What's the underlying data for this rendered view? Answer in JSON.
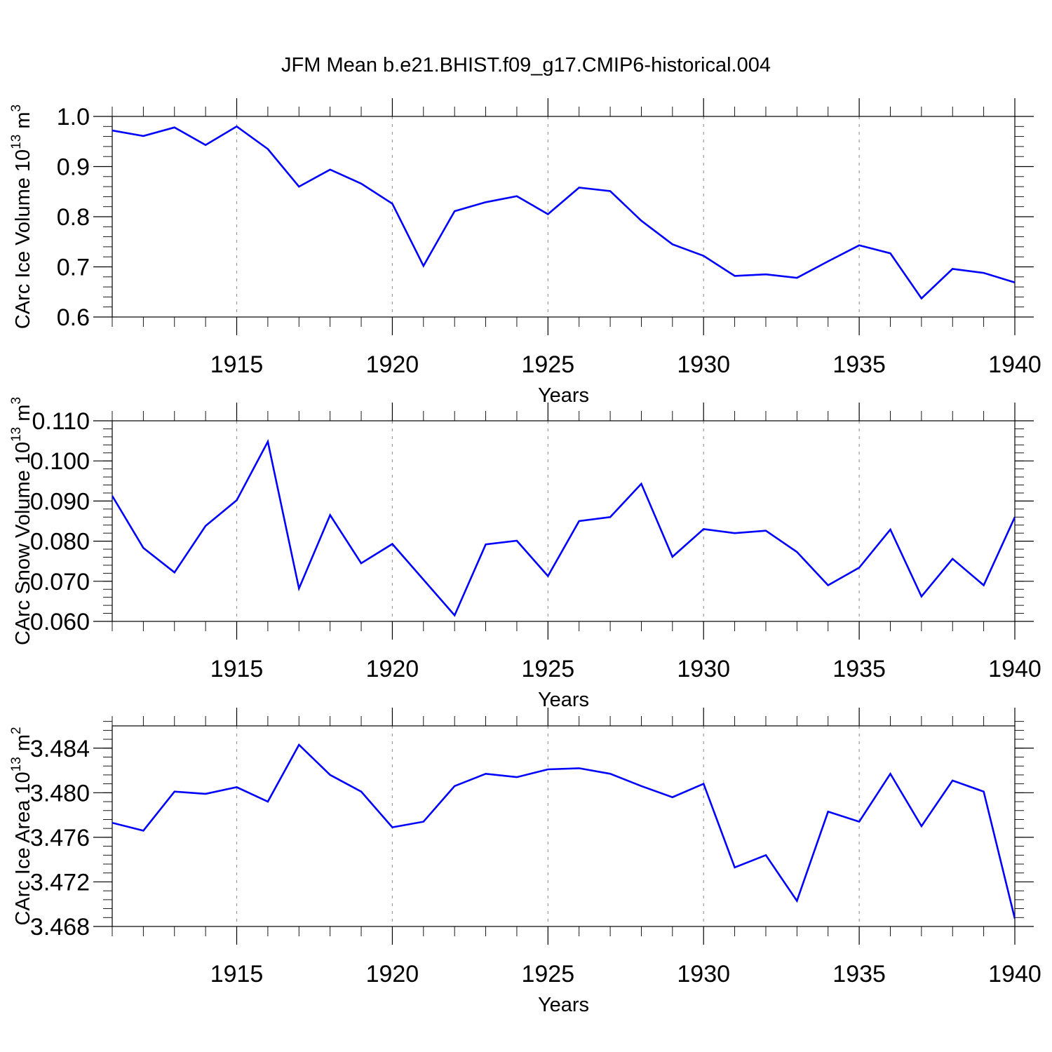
{
  "title": "JFM Mean b.e21.BHIST.f09_g17.CMIP6-historical.004",
  "colors": {
    "line": "#0000ff",
    "grid": "#999999",
    "frame": "#000000"
  },
  "chart_data": [
    {
      "type": "line",
      "ylabel": "CArc Ice Volume 10",
      "ylabel_exp": "13",
      "ylabel_unit": " m",
      "ylabel_unit_exp": "3",
      "xlabel": "Years",
      "xlim": [
        1911,
        1940
      ],
      "ylim": [
        0.6,
        1.0
      ],
      "yticks": [
        0.6,
        0.7,
        0.8,
        0.9,
        1.0
      ],
      "ytick_labels": [
        "0.6",
        "0.7",
        "0.8",
        "0.9",
        "1.0"
      ],
      "yminor_step": 0.02,
      "xticks": [
        1915,
        1920,
        1925,
        1930,
        1935,
        1940
      ],
      "xtick_labels": [
        "1915",
        "1920",
        "1925",
        "1930",
        "1935",
        "1940"
      ],
      "grid_x": [
        1915,
        1920,
        1925,
        1930,
        1935
      ],
      "x": [
        1911,
        1912,
        1913,
        1914,
        1915,
        1916,
        1917,
        1918,
        1919,
        1920,
        1921,
        1922,
        1923,
        1924,
        1925,
        1926,
        1927,
        1928,
        1929,
        1930,
        1931,
        1932,
        1933,
        1934,
        1935,
        1936,
        1937,
        1938,
        1939,
        1940
      ],
      "values": [
        0.972,
        0.961,
        0.978,
        0.943,
        0.98,
        0.935,
        0.86,
        0.894,
        0.866,
        0.826,
        0.702,
        0.811,
        0.829,
        0.841,
        0.805,
        0.858,
        0.851,
        0.792,
        0.745,
        0.722,
        0.682,
        0.685,
        0.678,
        0.711,
        0.743,
        0.727,
        0.637,
        0.696,
        0.688,
        0.669
      ]
    },
    {
      "type": "line",
      "ylabel": "CArc Snow Volume 10",
      "ylabel_exp": "13",
      "ylabel_unit": " m",
      "ylabel_unit_exp": "3",
      "xlabel": "Years",
      "xlim": [
        1911,
        1940
      ],
      "ylim": [
        0.06,
        0.11
      ],
      "yticks": [
        0.06,
        0.07,
        0.08,
        0.09,
        0.1,
        0.11
      ],
      "ytick_labels": [
        "0.060",
        "0.070",
        "0.080",
        "0.090",
        "0.100",
        "0.110"
      ],
      "yminor_step": 0.002,
      "xticks": [
        1915,
        1920,
        1925,
        1930,
        1935,
        1940
      ],
      "xtick_labels": [
        "1915",
        "1920",
        "1925",
        "1930",
        "1935",
        "1940"
      ],
      "grid_x": [
        1915,
        1920,
        1925,
        1930,
        1935
      ],
      "x": [
        1911,
        1912,
        1913,
        1914,
        1915,
        1916,
        1917,
        1918,
        1919,
        1920,
        1921,
        1922,
        1923,
        1924,
        1925,
        1926,
        1927,
        1928,
        1929,
        1930,
        1931,
        1932,
        1933,
        1934,
        1935,
        1936,
        1937,
        1938,
        1939,
        1940
      ],
      "values": [
        0.0913,
        0.0783,
        0.0722,
        0.0838,
        0.0902,
        0.1048,
        0.0682,
        0.0865,
        0.0745,
        0.0793,
        0.0704,
        0.0615,
        0.0792,
        0.0801,
        0.0713,
        0.085,
        0.086,
        0.0943,
        0.0761,
        0.083,
        0.082,
        0.0826,
        0.0773,
        0.069,
        0.0734,
        0.0829,
        0.0662,
        0.0756,
        0.069,
        0.086
      ]
    },
    {
      "type": "line",
      "ylabel": "CArc Ice Area 10",
      "ylabel_exp": "13",
      "ylabel_unit": " m",
      "ylabel_unit_exp": "2",
      "xlabel": "Years",
      "xlim": [
        1911,
        1940
      ],
      "ylim": [
        3.468,
        3.486
      ],
      "yticks": [
        3.468,
        3.472,
        3.476,
        3.48,
        3.484
      ],
      "ytick_labels": [
        "3.468",
        "3.472",
        "3.476",
        "3.480",
        "3.484"
      ],
      "yminor_step": 0.0008,
      "xticks": [
        1915,
        1920,
        1925,
        1930,
        1935,
        1940
      ],
      "xtick_labels": [
        "1915",
        "1920",
        "1925",
        "1930",
        "1935",
        "1940"
      ],
      "grid_x": [
        1915,
        1920,
        1925,
        1930,
        1935
      ],
      "x": [
        1911,
        1912,
        1913,
        1914,
        1915,
        1916,
        1917,
        1918,
        1919,
        1920,
        1921,
        1922,
        1923,
        1924,
        1925,
        1926,
        1927,
        1928,
        1929,
        1930,
        1931,
        1932,
        1933,
        1934,
        1935,
        1936,
        1937,
        1938,
        1939,
        1940
      ],
      "values": [
        3.4773,
        3.4766,
        3.4801,
        3.4799,
        3.4805,
        3.4792,
        3.4843,
        3.4816,
        3.4801,
        3.4769,
        3.4774,
        3.4806,
        3.4817,
        3.4814,
        3.4821,
        3.4822,
        3.4817,
        3.4806,
        3.4796,
        3.4808,
        3.4733,
        3.4744,
        3.4703,
        3.4783,
        3.4774,
        3.4817,
        3.477,
        3.4811,
        3.4801,
        3.4687
      ]
    }
  ]
}
